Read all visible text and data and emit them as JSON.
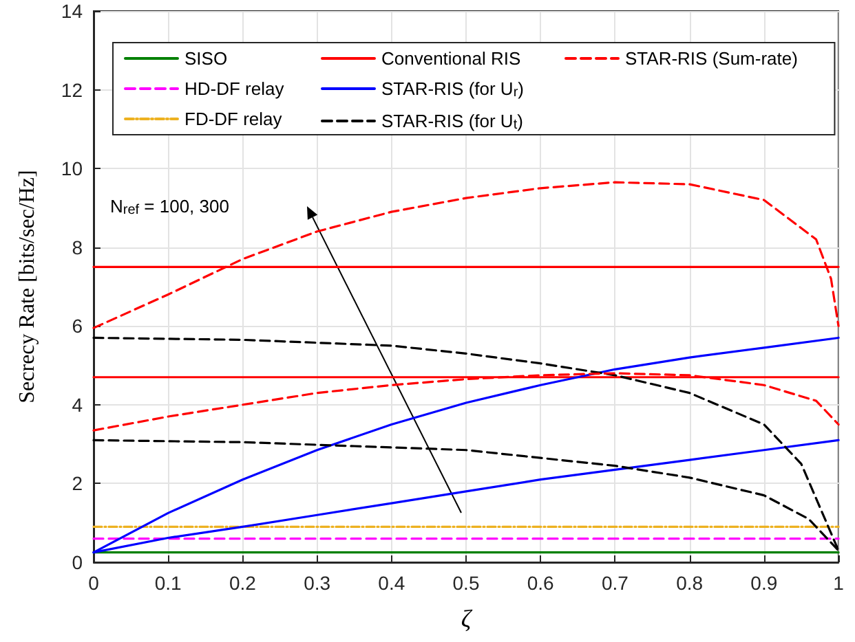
{
  "chart_data": {
    "type": "line",
    "xlabel": "ζ",
    "ylabel": "Secrecy Rate [bits/sec/Hz]",
    "xlim": [
      0,
      1
    ],
    "xticks": [
      0,
      0.1,
      0.2,
      0.3,
      0.4,
      0.5,
      0.6,
      0.7,
      0.8,
      0.9,
      1
    ],
    "ylim": [
      0,
      14
    ],
    "yticks": [
      0,
      2,
      4,
      6,
      8,
      10,
      12,
      14
    ],
    "grid": true,
    "legend": "top",
    "marker": "none",
    "annotations": [
      "N$_{ref}$ = 100, 300"
    ],
    "series": [
      {
        "name": "SISO",
        "color": "#008000",
        "line_style": "solid",
        "x": [
          0,
          1
        ],
        "values": [
          0.25,
          0.25
        ]
      },
      {
        "name": "HD-DF relay",
        "color": "#ff00ff",
        "line_style": "dashed",
        "x": [
          0,
          1
        ],
        "values": [
          0.6,
          0.6
        ]
      },
      {
        "name": "FD-DF relay",
        "color": "#edb120",
        "line_style": "dashdot",
        "x": [
          0,
          1
        ],
        "values": [
          0.9,
          0.9
        ]
      },
      {
        "name": "Conventional RIS",
        "color": "#ff0000",
        "line_style": "solid",
        "x": [
          0,
          1
        ],
        "values": [
          4.7,
          4.7
        ]
      },
      {
        "color": "#ff0000",
        "line_style": "solid",
        "x": [
          0,
          1
        ],
        "values": [
          7.5,
          7.5
        ]
      },
      {
        "name": "STAR-RIS (for U$_{r}$)",
        "color": "#0000ff",
        "line_style": "solid",
        "x": [
          0,
          0.1,
          0.2,
          0.3,
          0.4,
          0.5,
          0.6,
          0.7,
          0.8,
          0.9,
          1
        ],
        "values": [
          0.25,
          0.62,
          0.9,
          1.2,
          1.5,
          1.8,
          2.1,
          2.35,
          2.6,
          2.85,
          3.1
        ]
      },
      {
        "color": "#0000ff",
        "line_style": "solid",
        "x": [
          0,
          0.1,
          0.2,
          0.3,
          0.4,
          0.5,
          0.6,
          0.7,
          0.8,
          0.9,
          1
        ],
        "values": [
          0.25,
          1.25,
          2.1,
          2.85,
          3.5,
          4.05,
          4.5,
          4.9,
          5.2,
          5.45,
          5.7
        ]
      },
      {
        "name": "STAR-RIS (for U$_{t}$)",
        "color": "#000000",
        "line_style": "dashed",
        "x": [
          0,
          0.2,
          0.35,
          0.5,
          0.6,
          0.7,
          0.8,
          0.9,
          0.96,
          1
        ],
        "values": [
          3.1,
          3.05,
          2.95,
          2.85,
          2.65,
          2.45,
          2.15,
          1.7,
          1.1,
          0.3
        ]
      },
      {
        "color": "#000000",
        "line_style": "dashed",
        "x": [
          0,
          0.2,
          0.4,
          0.5,
          0.6,
          0.7,
          0.8,
          0.9,
          0.95,
          1
        ],
        "values": [
          5.7,
          5.65,
          5.5,
          5.3,
          5.05,
          4.75,
          4.3,
          3.5,
          2.5,
          0.3
        ]
      },
      {
        "name": "STAR-RIS (Sum-rate)",
        "color": "#ff0000",
        "line_style": "dashed",
        "x": [
          0,
          0.1,
          0.2,
          0.3,
          0.4,
          0.5,
          0.6,
          0.7,
          0.8,
          0.9,
          0.97,
          1
        ],
        "values": [
          3.35,
          3.7,
          4.0,
          4.3,
          4.5,
          4.65,
          4.75,
          4.8,
          4.75,
          4.5,
          4.1,
          3.5
        ]
      },
      {
        "color": "#ff0000",
        "line_style": "dashed",
        "x": [
          0,
          0.1,
          0.2,
          0.3,
          0.4,
          0.5,
          0.6,
          0.7,
          0.8,
          0.9,
          0.97,
          0.99,
          1
        ],
        "values": [
          5.95,
          6.8,
          7.7,
          8.4,
          8.9,
          9.25,
          9.5,
          9.65,
          9.6,
          9.2,
          8.2,
          7.2,
          6.0
        ]
      }
    ]
  }
}
